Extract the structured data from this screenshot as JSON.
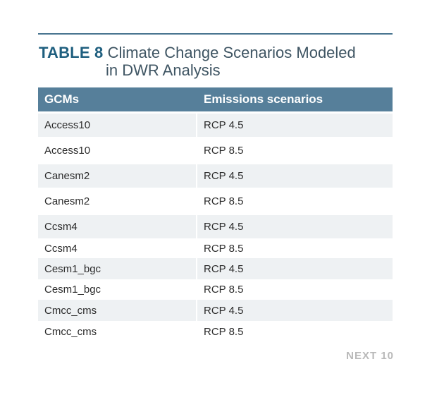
{
  "title": {
    "label": "TABLE 8",
    "line1": "Climate Change Scenarios Modeled",
    "line2": "in DWR Analysis"
  },
  "table": {
    "headers": [
      "GCMs",
      "Emissions scenarios"
    ],
    "rows": [
      [
        "Access10",
        "RCP 4.5"
      ],
      [
        "Access10",
        "RCP 8.5"
      ],
      [
        "Canesm2",
        "RCP 4.5"
      ],
      [
        "Canesm2",
        "RCP 8.5"
      ],
      [
        "Ccsm4",
        "RCP 4.5"
      ],
      [
        "Ccsm4",
        "RCP 8.5"
      ],
      [
        "Cesm1_bgc",
        "RCP 4.5"
      ],
      [
        "Cesm1_bgc",
        "RCP 8.5"
      ],
      [
        "Cmcc_cms",
        "RCP 4.5"
      ],
      [
        "Cmcc_cms",
        "RCP 8.5"
      ]
    ]
  },
  "footer": {
    "brand": "NEXT 10"
  },
  "colors": {
    "header_bg": "#567f9a",
    "title_label": "#1f5f7f",
    "row_shade": "#eef1f3",
    "brand": "#b9b9b9"
  }
}
